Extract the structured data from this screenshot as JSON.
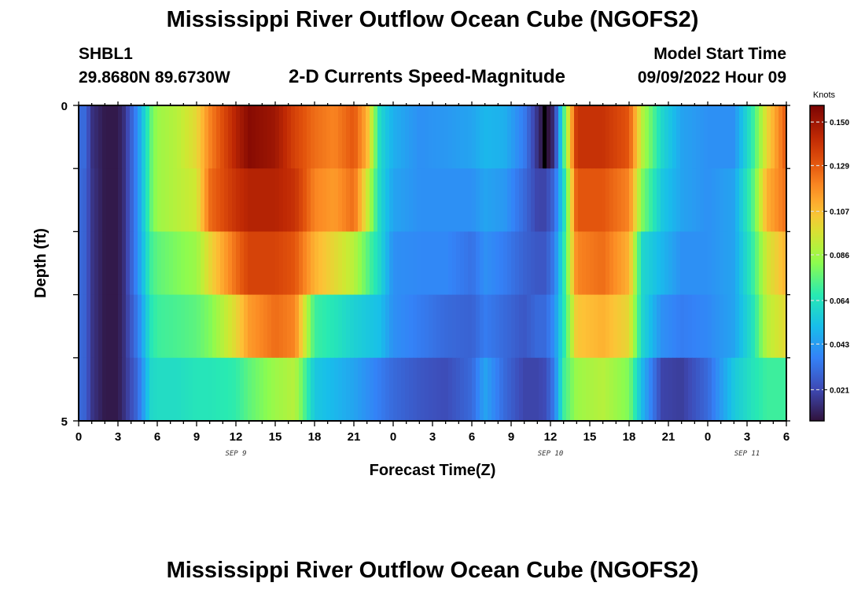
{
  "header": {
    "title": "Mississippi River Outflow Ocean Cube (NGOFS2)",
    "station_id": "SHBL1",
    "station_coords": "29.8680N  89.6730W",
    "plot_title": "2-D Currents Speed-Magnitude",
    "model_label": "Model Start Time",
    "model_time": "09/09/2022 Hour 09"
  },
  "footer": {
    "title": "Mississippi River Outflow Ocean Cube (NGOFS2)"
  },
  "chart_data": {
    "type": "heatmap",
    "title": "2-D Currents Speed-Magnitude",
    "xlabel": "Forecast Time(Z)",
    "ylabel": "Depth (ft)",
    "x_tick_labels": [
      "0",
      "3",
      "6",
      "9",
      "12",
      "15",
      "18",
      "21",
      "0",
      "3",
      "6",
      "9",
      "12",
      "15",
      "18",
      "21",
      "0",
      "3",
      "6"
    ],
    "x_date_labels": [
      {
        "label": "SEP 9",
        "hour": 12
      },
      {
        "label": "SEP 10",
        "hour": 36
      },
      {
        "label": "SEP 11",
        "hour": 51
      }
    ],
    "xlim_hours": [
      0,
      54
    ],
    "y_tick_labels": [
      "0",
      "5"
    ],
    "ylim": [
      0,
      5
    ],
    "colorbar": {
      "unit": "Knots",
      "tick_values": [
        "0.150",
        "0.129",
        "0.107",
        "0.086",
        "0.064",
        "0.043",
        "0.021"
      ],
      "range": [
        0.006,
        0.158
      ]
    },
    "depth_layers": [
      0,
      1,
      2,
      3,
      4
    ],
    "speed_keyframes": [
      {
        "hour": 0,
        "speed": [
          0.03,
          0.03,
          0.03,
          0.03,
          0.03
        ]
      },
      {
        "hour": 0.5,
        "speed": [
          0.03,
          0.028,
          0.028,
          0.028,
          0.028
        ]
      },
      {
        "hour": 1,
        "speed": [
          0.015,
          0.016,
          0.016,
          0.016,
          0.016
        ]
      },
      {
        "hour": 2,
        "speed": [
          0.008,
          0.008,
          0.008,
          0.008,
          0.008
        ]
      },
      {
        "hour": 3,
        "speed": [
          0.008,
          0.008,
          0.008,
          0.008,
          0.008
        ]
      },
      {
        "hour": 3.5,
        "speed": [
          0.015,
          0.015,
          0.015,
          0.015,
          0.015
        ]
      },
      {
        "hour": 4.5,
        "speed": [
          0.04,
          0.04,
          0.04,
          0.035,
          0.03
        ]
      },
      {
        "hour": 5.5,
        "speed": [
          0.075,
          0.075,
          0.07,
          0.065,
          0.06
        ]
      },
      {
        "hour": 6,
        "speed": [
          0.085,
          0.085,
          0.075,
          0.07,
          0.062
        ]
      },
      {
        "hour": 7.5,
        "speed": [
          0.09,
          0.09,
          0.08,
          0.072,
          0.062
        ]
      },
      {
        "hour": 9,
        "speed": [
          0.1,
          0.095,
          0.085,
          0.075,
          0.065
        ]
      },
      {
        "hour": 10,
        "speed": [
          0.12,
          0.125,
          0.1,
          0.08,
          0.065
        ]
      },
      {
        "hour": 12,
        "speed": [
          0.145,
          0.14,
          0.125,
          0.1,
          0.068
        ]
      },
      {
        "hour": 13,
        "speed": [
          0.155,
          0.145,
          0.135,
          0.115,
          0.075
        ]
      },
      {
        "hour": 15,
        "speed": [
          0.15,
          0.145,
          0.135,
          0.125,
          0.085
        ]
      },
      {
        "hour": 16.5,
        "speed": [
          0.135,
          0.14,
          0.13,
          0.12,
          0.09
        ]
      },
      {
        "hour": 18,
        "speed": [
          0.125,
          0.12,
          0.11,
          0.07,
          0.055
        ]
      },
      {
        "hour": 19.5,
        "speed": [
          0.12,
          0.115,
          0.1,
          0.065,
          0.05
        ]
      },
      {
        "hour": 21,
        "speed": [
          0.13,
          0.125,
          0.09,
          0.058,
          0.045
        ]
      },
      {
        "hour": 22,
        "speed": [
          0.11,
          0.095,
          0.075,
          0.055,
          0.04
        ]
      },
      {
        "hour": 23,
        "speed": [
          0.06,
          0.06,
          0.06,
          0.052,
          0.035
        ]
      },
      {
        "hour": 24,
        "speed": [
          0.048,
          0.045,
          0.04,
          0.04,
          0.03
        ]
      },
      {
        "hour": 26,
        "speed": [
          0.04,
          0.04,
          0.038,
          0.035,
          0.025
        ]
      },
      {
        "hour": 28,
        "speed": [
          0.042,
          0.04,
          0.038,
          0.03,
          0.022
        ]
      },
      {
        "hour": 30,
        "speed": [
          0.045,
          0.04,
          0.032,
          0.028,
          0.03
        ]
      },
      {
        "hour": 31,
        "speed": [
          0.05,
          0.045,
          0.04,
          0.035,
          0.045
        ]
      },
      {
        "hour": 32.5,
        "speed": [
          0.048,
          0.042,
          0.035,
          0.03,
          0.03
        ]
      },
      {
        "hour": 34,
        "speed": [
          0.035,
          0.03,
          0.028,
          0.025,
          0.02
        ]
      },
      {
        "hour": 35,
        "speed": [
          0.015,
          0.02,
          0.025,
          0.03,
          0.02
        ]
      },
      {
        "hour": 35.6,
        "speed": [
          0.002,
          0.02,
          0.025,
          0.03,
          0.022
        ]
      },
      {
        "hour": 36.3,
        "speed": [
          0.015,
          0.03,
          0.035,
          0.04,
          0.035
        ]
      },
      {
        "hour": 37,
        "speed": [
          0.07,
          0.06,
          0.065,
          0.065,
          0.07
        ]
      },
      {
        "hour": 38,
        "speed": [
          0.14,
          0.13,
          0.12,
          0.105,
          0.085
        ]
      },
      {
        "hour": 40,
        "speed": [
          0.14,
          0.13,
          0.125,
          0.11,
          0.09
        ]
      },
      {
        "hour": 42,
        "speed": [
          0.13,
          0.12,
          0.11,
          0.1,
          0.08
        ]
      },
      {
        "hour": 43,
        "speed": [
          0.09,
          0.08,
          0.06,
          0.06,
          0.05
        ]
      },
      {
        "hour": 44.5,
        "speed": [
          0.06,
          0.055,
          0.05,
          0.04,
          0.02
        ]
      },
      {
        "hour": 46,
        "speed": [
          0.045,
          0.045,
          0.04,
          0.035,
          0.018
        ]
      },
      {
        "hour": 48,
        "speed": [
          0.04,
          0.04,
          0.04,
          0.038,
          0.03
        ]
      },
      {
        "hour": 50,
        "speed": [
          0.04,
          0.045,
          0.045,
          0.045,
          0.055
        ]
      },
      {
        "hour": 51.5,
        "speed": [
          0.07,
          0.075,
          0.07,
          0.065,
          0.065
        ]
      },
      {
        "hour": 52.5,
        "speed": [
          0.1,
          0.11,
          0.095,
          0.09,
          0.07
        ]
      },
      {
        "hour": 54,
        "speed": [
          0.13,
          0.125,
          0.11,
          0.1,
          0.07
        ]
      }
    ]
  }
}
